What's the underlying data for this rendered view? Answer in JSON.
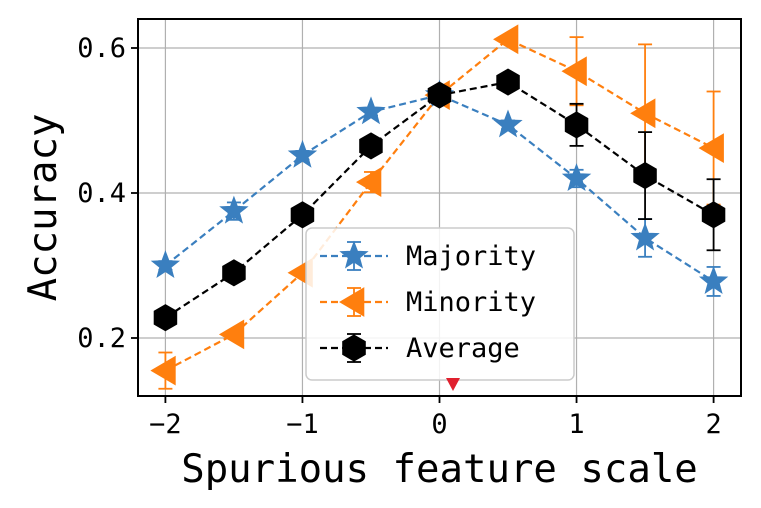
{
  "chart_data": {
    "type": "line",
    "xlabel": "Spurious feature scale",
    "ylabel": "Accuracy",
    "xlim": [
      -2.2,
      2.2
    ],
    "ylim": [
      0.12,
      0.64
    ],
    "xticks": [
      -2,
      -1,
      0,
      1,
      2
    ],
    "xtick_labels": [
      "−2",
      "−1",
      "0",
      "1",
      "2"
    ],
    "yticks": [
      0.2,
      0.4,
      0.6
    ],
    "ytick_labels": [
      "0.2",
      "0.4",
      "0.6"
    ],
    "grid": true,
    "legend_position": "lower-center",
    "x": [
      -2,
      -1.5,
      -1,
      -0.5,
      0,
      0.5,
      1,
      1.5,
      2
    ],
    "series": [
      {
        "name": "Majority",
        "color": "#3a7fbf",
        "marker": "star",
        "values": [
          0.3,
          0.375,
          0.452,
          0.512,
          0.535,
          0.494,
          0.42,
          0.338,
          0.278
        ],
        "errors": [
          0.006,
          0.012,
          0.006,
          0.005,
          0.006,
          0.006,
          0.012,
          0.026,
          0.02
        ]
      },
      {
        "name": "Minority",
        "color": "#ff7f0e",
        "marker": "triangle-left",
        "values": [
          0.155,
          0.205,
          0.29,
          0.415,
          0.535,
          0.612,
          0.568,
          0.51,
          0.462
        ],
        "errors": [
          0.025,
          0.004,
          0.005,
          0.014,
          0.006,
          0.005,
          0.047,
          0.095,
          0.078
        ]
      },
      {
        "name": "Average",
        "color": "#000000",
        "marker": "hexagon",
        "values": [
          0.228,
          0.29,
          0.37,
          0.465,
          0.535,
          0.553,
          0.494,
          0.424,
          0.37
        ],
        "errors": [
          0.004,
          0.004,
          0.004,
          0.006,
          0.006,
          0.004,
          0.029,
          0.06,
          0.049
        ]
      }
    ]
  }
}
